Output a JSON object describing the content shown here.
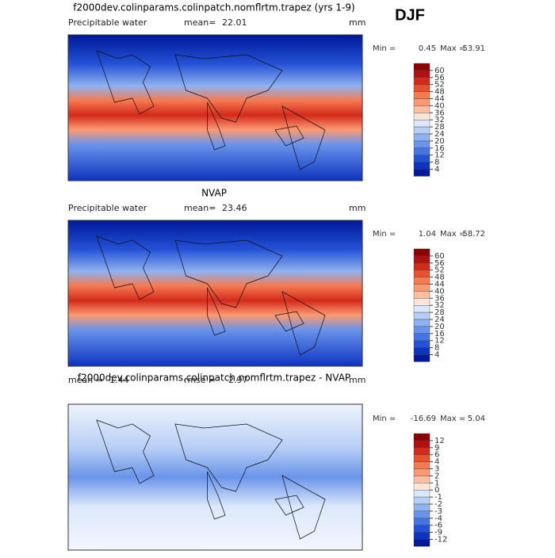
{
  "season": "DJF",
  "panels": [
    {
      "title": "f2000dev.colinparams.colinpatch.nomflrtm.trapez (yrs 1-9)",
      "variable": "Precipitable water",
      "stat1_label": "mean=",
      "stat1": 22.01,
      "units": "mm",
      "min_label": "Min =",
      "min": 0.45,
      "max_label": "Max =",
      "max": 53.91,
      "levels": [
        60,
        56,
        52,
        48,
        44,
        40,
        36,
        32,
        28,
        24,
        20,
        16,
        12,
        8,
        4
      ],
      "colors": [
        "#8b0000",
        "#b01010",
        "#d42a1a",
        "#e8502e",
        "#f57a50",
        "#fb9a72",
        "#fdbfa0",
        "#fde6d8",
        "#dbe8fb",
        "#b7cff5",
        "#8fb2f0",
        "#6a94ea",
        "#4574e3",
        "#2452d6",
        "#0c34c0",
        "#00189a"
      ]
    },
    {
      "title": "NVAP",
      "variable": "Precipitable water",
      "stat1_label": "mean=",
      "stat1": 23.46,
      "units": "mm",
      "min_label": "Min =",
      "min": 1.04,
      "max_label": "Max =",
      "max": 58.72,
      "levels": [
        60,
        56,
        52,
        48,
        44,
        40,
        36,
        32,
        28,
        24,
        20,
        16,
        12,
        8,
        4
      ],
      "colors": [
        "#8b0000",
        "#b01010",
        "#d42a1a",
        "#e8502e",
        "#f57a50",
        "#fb9a72",
        "#fdbfa0",
        "#fde6d8",
        "#dbe8fb",
        "#b7cff5",
        "#8fb2f0",
        "#6a94ea",
        "#4574e3",
        "#2452d6",
        "#0c34c0",
        "#00189a"
      ]
    },
    {
      "title": "f2000dev.colinparams.colinpatch.nomflrtm.trapez - NVAP",
      "stat1_label": "mean =",
      "stat1": -1.44,
      "stat2_label": "rmse =",
      "stat2": 2.97,
      "units": "mm",
      "min_label": "Min =",
      "min": -16.69,
      "max_label": "Max =",
      "max": 5.04,
      "levels": [
        12,
        9,
        6,
        4,
        3,
        2,
        1,
        0,
        -1,
        -2,
        -3,
        -4,
        -6,
        -9,
        -12
      ],
      "colors": [
        "#8b0000",
        "#b01010",
        "#d42a1a",
        "#e8502e",
        "#f57a50",
        "#fb9a72",
        "#fdbfa0",
        "#fde6d8",
        "#dbe8fb",
        "#b7cff5",
        "#8fb2f0",
        "#6a94ea",
        "#4574e3",
        "#2452d6",
        "#0c34c0",
        "#00189a"
      ]
    }
  ]
}
